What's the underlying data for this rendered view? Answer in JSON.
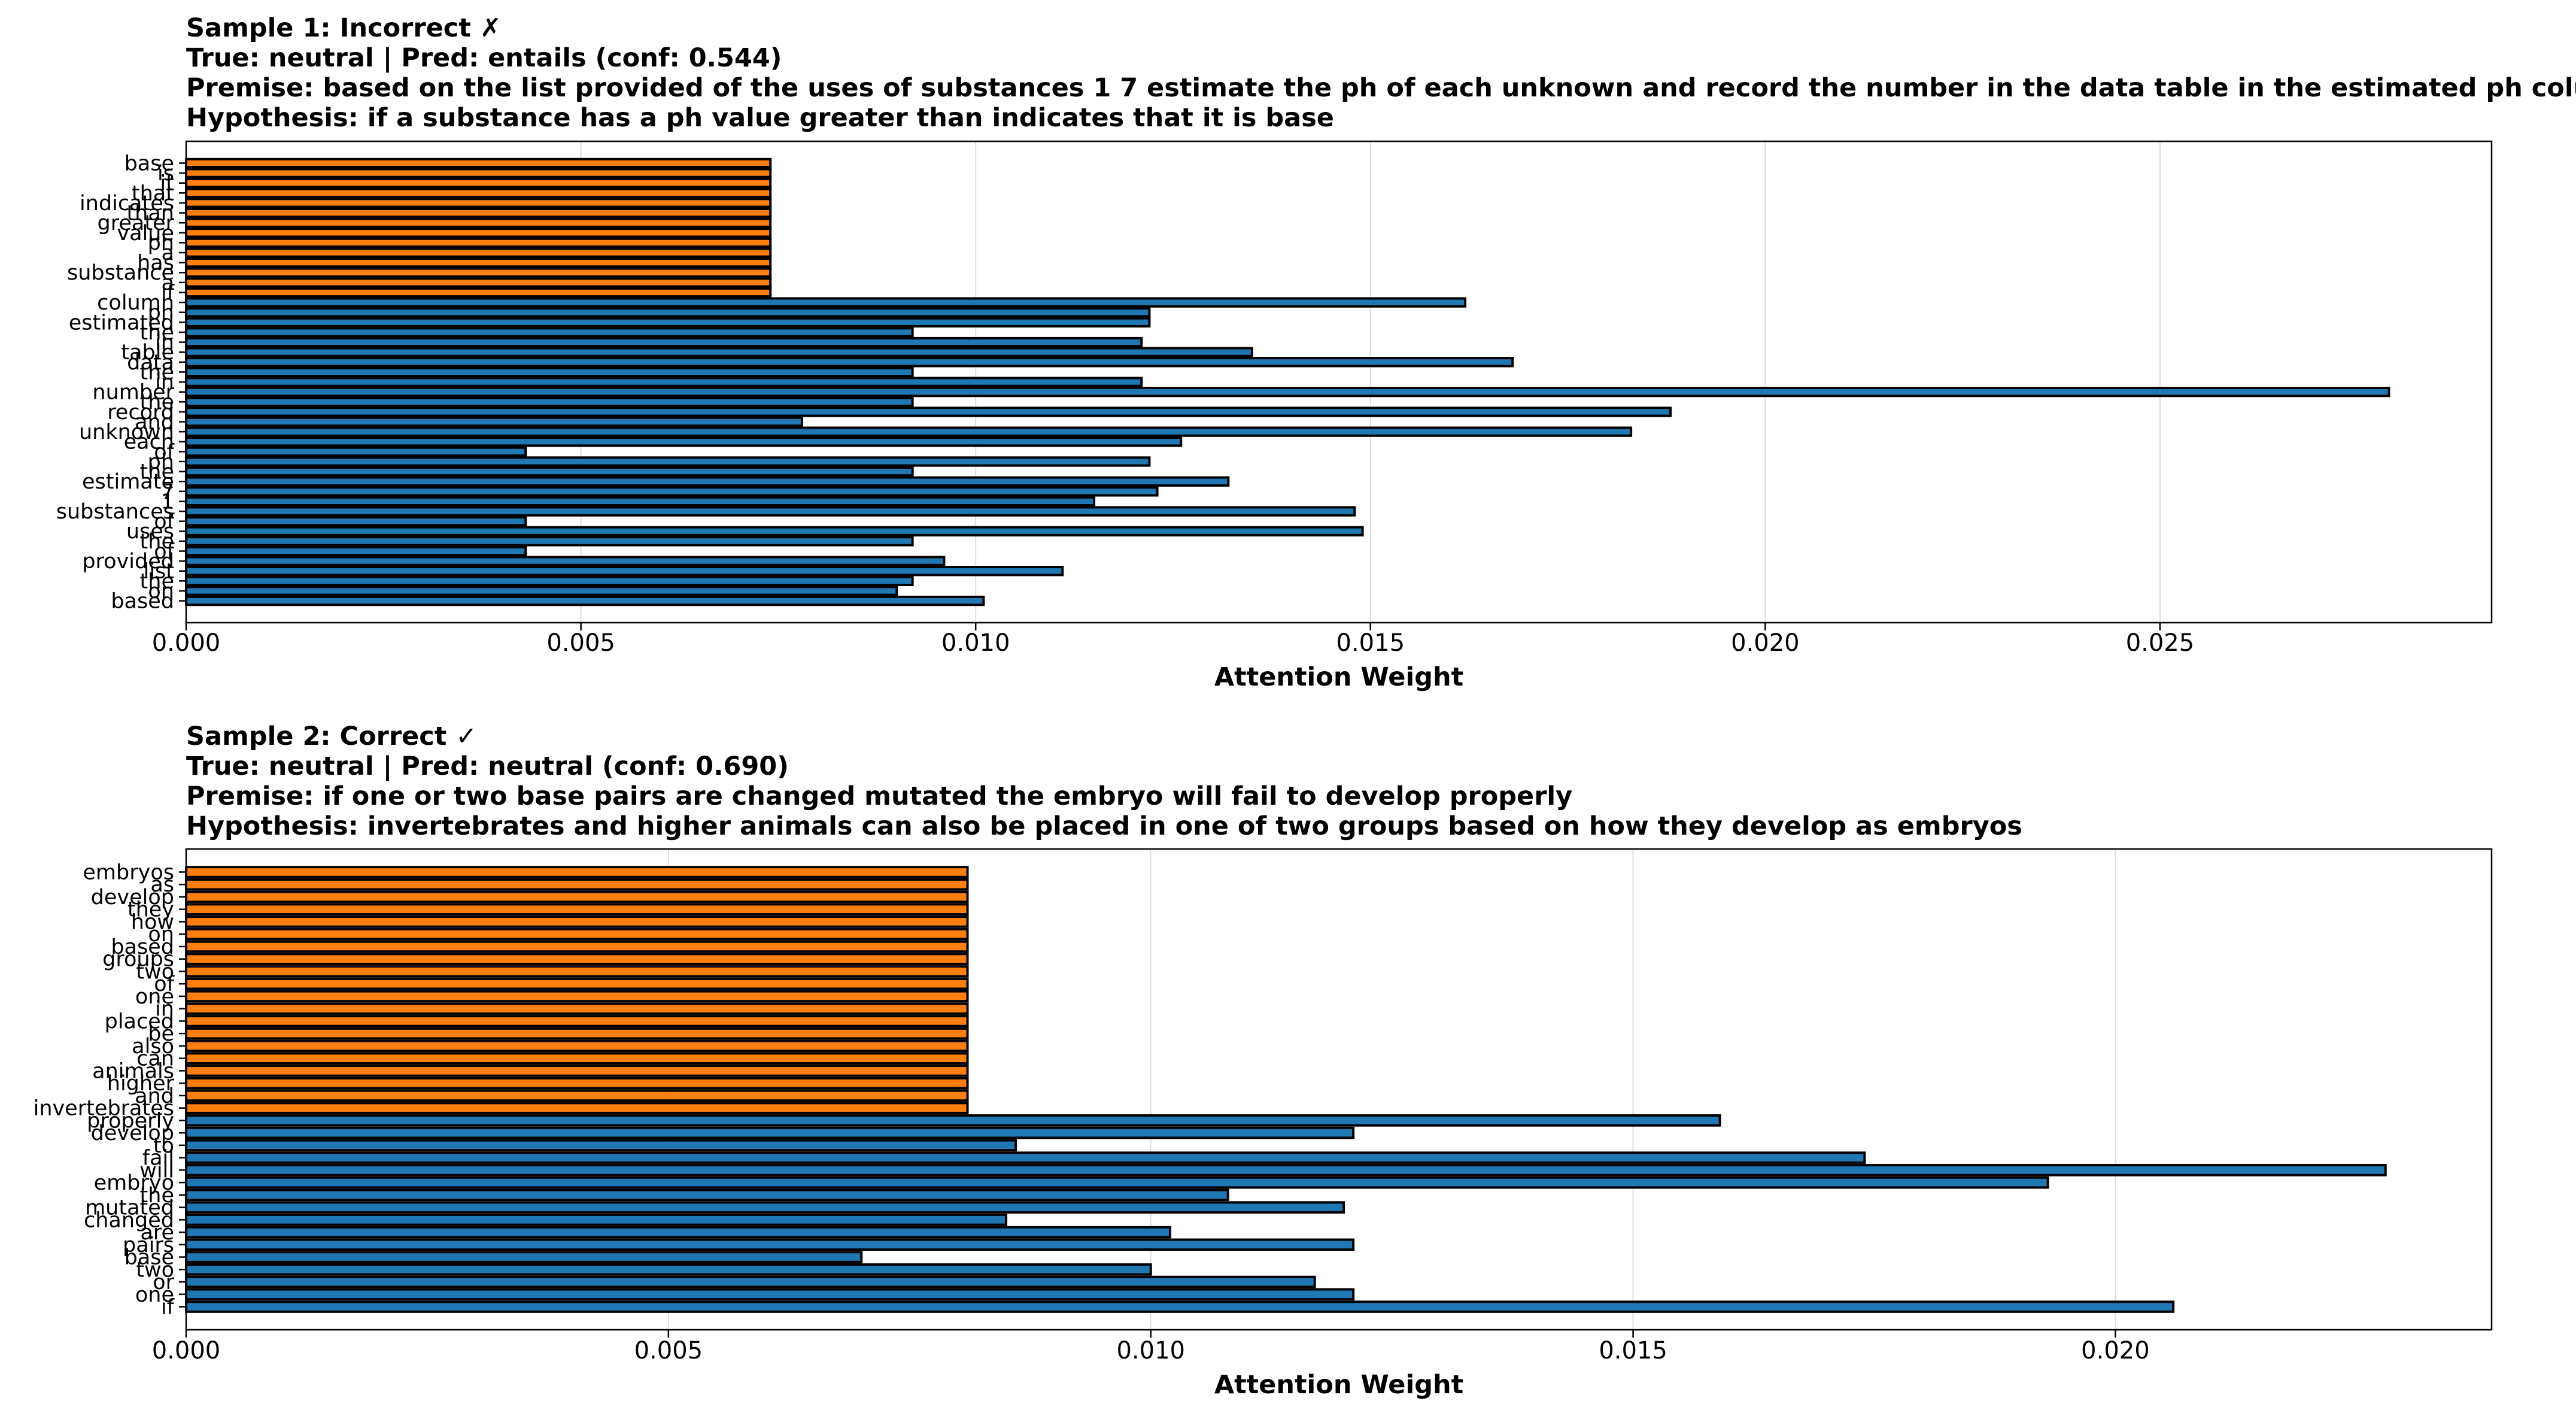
{
  "colors": {
    "premise_bar": "#1f77b4",
    "hypothesis_bar": "#ff7f0e",
    "bar_edge": "#000000",
    "grid": "#dddddd"
  },
  "charts": [
    {
      "header": {
        "title": "Sample 1: Incorrect ✗",
        "labels": "True: neutral | Pred: entails (conf: 0.544)",
        "premise": "Premise: based on the list provided of the uses of substances 1 7 estimate the ph of each unknown and record the number in the data table in the estimated ph column",
        "hypothesis": "Hypothesis: if a substance has a ph value greater than indicates that it is base"
      },
      "xlabel": "Attention Weight"
    },
    {
      "header": {
        "title": "Sample 2: Correct ✓",
        "labels": "True: neutral | Pred: neutral (conf: 0.690)",
        "premise": "Premise: if one or two base pairs are changed mutated the embryo will fail to develop properly",
        "hypothesis": "Hypothesis: invertebrates and higher animals can also be placed in one of two groups based on how they develop as embryos"
      },
      "xlabel": "Attention Weight"
    }
  ],
  "chart_data": [
    {
      "type": "bar",
      "orientation": "horizontal",
      "title": "Sample 1: Incorrect ✗",
      "xlabel": "Attention Weight",
      "ylabel": "",
      "xlim": [
        0,
        0.0292
      ],
      "xticks": [
        "0.000",
        "0.005",
        "0.010",
        "0.015",
        "0.020",
        "0.025"
      ],
      "xtick_values": [
        0,
        0.005,
        0.01,
        0.015,
        0.02,
        0.025
      ],
      "grid": "x",
      "categories": [
        "based",
        "on",
        "the",
        "list",
        "provided",
        "of",
        "the",
        "uses",
        "of",
        "substances",
        "1",
        "7",
        "estimate",
        "the",
        "ph",
        "of",
        "each",
        "unknown",
        "and",
        "record",
        "the",
        "number",
        "in",
        "the",
        "data",
        "table",
        "in",
        "the",
        "estimated",
        "ph",
        "column",
        "if",
        "a",
        "substance",
        "has",
        "a",
        "ph",
        "value",
        "greater",
        "than",
        "indicates",
        "that",
        "it",
        "is",
        "base"
      ],
      "values": [
        0.0101,
        0.009,
        0.0092,
        0.0111,
        0.0096,
        0.0043,
        0.0092,
        0.0149,
        0.0043,
        0.0148,
        0.0115,
        0.0123,
        0.0132,
        0.0092,
        0.0122,
        0.0043,
        0.0126,
        0.0183,
        0.0078,
        0.0188,
        0.0092,
        0.0279,
        0.0121,
        0.0092,
        0.0168,
        0.0135,
        0.0121,
        0.0092,
        0.0122,
        0.0122,
        0.0162,
        0.0074,
        0.0074,
        0.0074,
        0.0074,
        0.0074,
        0.0074,
        0.0074,
        0.0074,
        0.0074,
        0.0074,
        0.0074,
        0.0074,
        0.0074,
        0.0074
      ],
      "segments": [
        "premise",
        "premise",
        "premise",
        "premise",
        "premise",
        "premise",
        "premise",
        "premise",
        "premise",
        "premise",
        "premise",
        "premise",
        "premise",
        "premise",
        "premise",
        "premise",
        "premise",
        "premise",
        "premise",
        "premise",
        "premise",
        "premise",
        "premise",
        "premise",
        "premise",
        "premise",
        "premise",
        "premise",
        "premise",
        "premise",
        "premise",
        "hypothesis",
        "hypothesis",
        "hypothesis",
        "hypothesis",
        "hypothesis",
        "hypothesis",
        "hypothesis",
        "hypothesis",
        "hypothesis",
        "hypothesis",
        "hypothesis",
        "hypothesis",
        "hypothesis",
        "hypothesis"
      ]
    },
    {
      "type": "bar",
      "orientation": "horizontal",
      "title": "Sample 2: Correct ✓",
      "xlabel": "Attention Weight",
      "ylabel": "",
      "xlim": [
        0,
        0.0239
      ],
      "xticks": [
        "0.000",
        "0.005",
        "0.010",
        "0.015",
        "0.020"
      ],
      "xtick_values": [
        0,
        0.005,
        0.01,
        0.015,
        0.02
      ],
      "grid": "x",
      "categories": [
        "if",
        "one",
        "or",
        "two",
        "base",
        "pairs",
        "are",
        "changed",
        "mutated",
        "the",
        "embryo",
        "will",
        "fail",
        "to",
        "develop",
        "properly",
        "invertebrates",
        "and",
        "higher",
        "animals",
        "can",
        "also",
        "be",
        "placed",
        "in",
        "one",
        "of",
        "two",
        "groups",
        "based",
        "on",
        "how",
        "they",
        "develop",
        "as",
        "embryos"
      ],
      "values": [
        0.0206,
        0.0121,
        0.0117,
        0.01,
        0.007,
        0.0121,
        0.0102,
        0.0085,
        0.012,
        0.0108,
        0.0193,
        0.0228,
        0.0174,
        0.0086,
        0.0121,
        0.0159,
        0.0081,
        0.0081,
        0.0081,
        0.0081,
        0.0081,
        0.0081,
        0.0081,
        0.0081,
        0.0081,
        0.0081,
        0.0081,
        0.0081,
        0.0081,
        0.0081,
        0.0081,
        0.0081,
        0.0081,
        0.0081,
        0.0081,
        0.0081
      ],
      "segments": [
        "premise",
        "premise",
        "premise",
        "premise",
        "premise",
        "premise",
        "premise",
        "premise",
        "premise",
        "premise",
        "premise",
        "premise",
        "premise",
        "premise",
        "premise",
        "premise",
        "hypothesis",
        "hypothesis",
        "hypothesis",
        "hypothesis",
        "hypothesis",
        "hypothesis",
        "hypothesis",
        "hypothesis",
        "hypothesis",
        "hypothesis",
        "hypothesis",
        "hypothesis",
        "hypothesis",
        "hypothesis",
        "hypothesis",
        "hypothesis",
        "hypothesis",
        "hypothesis",
        "hypothesis",
        "hypothesis"
      ]
    }
  ]
}
